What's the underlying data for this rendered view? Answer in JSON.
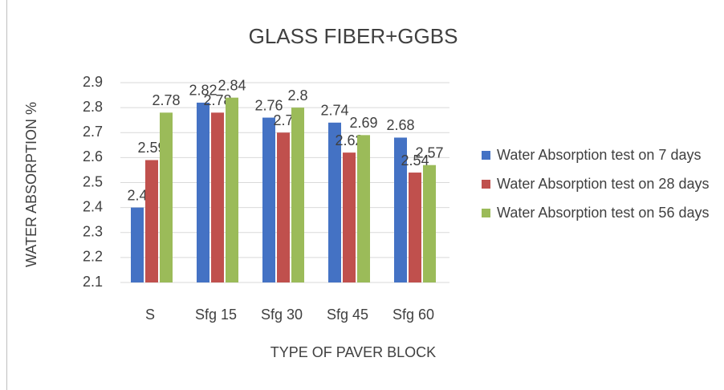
{
  "chart_data": {
    "type": "bar",
    "title": "GLASS FIBER+GGBS",
    "x_label": "TYPE OF PAVER BLOCK",
    "y_label": "WATER ABSORPTION %",
    "categories": [
      "S",
      "Sfg 15",
      "Sfg 30",
      "Sfg 45",
      "Sfg 60"
    ],
    "series": [
      {
        "name": "Water Absorption test on 7 days",
        "color": "#4472c4",
        "values": [
          2.4,
          2.82,
          2.76,
          2.74,
          2.68
        ]
      },
      {
        "name": "Water Absorption test on 28 days",
        "color": "#c0504d",
        "values": [
          2.59,
          2.78,
          2.7,
          2.62,
          2.54
        ]
      },
      {
        "name": "Water Absorption test on 56 days",
        "color": "#9bbb59",
        "values": [
          2.78,
          2.84,
          2.8,
          2.69,
          2.57
        ]
      }
    ],
    "ylim": [
      2.1,
      2.9
    ],
    "yticks": [
      2.1,
      2.2,
      2.3,
      2.4,
      2.5,
      2.6,
      2.7,
      2.8,
      2.9
    ],
    "grid": true,
    "legend": "right"
  }
}
